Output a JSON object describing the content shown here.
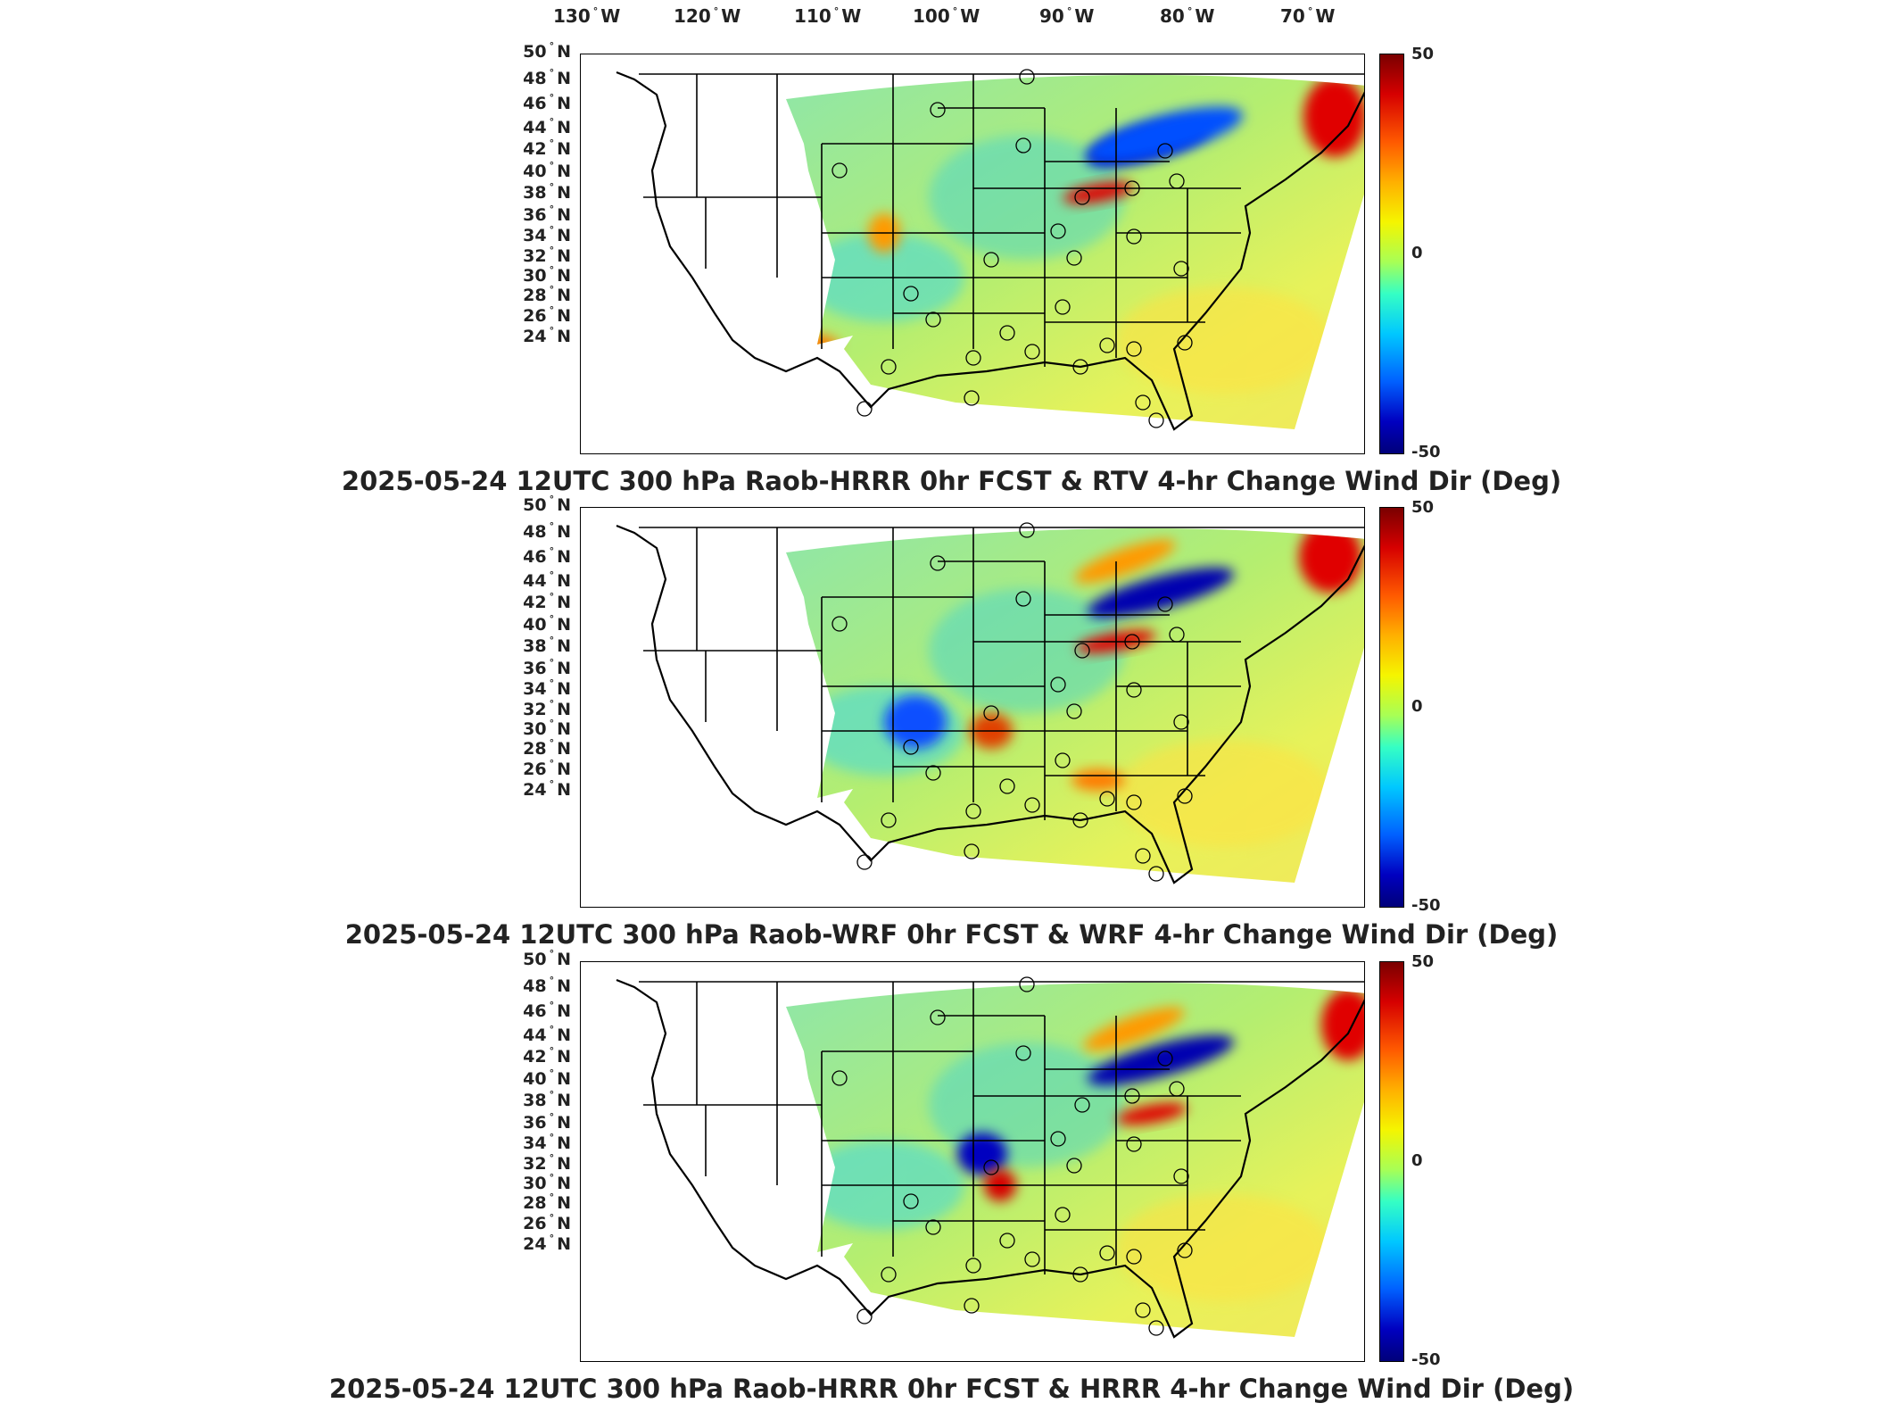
{
  "lon_labels": [
    {
      "deg": "130",
      "hem": "W"
    },
    {
      "deg": "120",
      "hem": "W"
    },
    {
      "deg": "110",
      "hem": "W"
    },
    {
      "deg": "100",
      "hem": "W"
    },
    {
      "deg": "90",
      "hem": "W"
    },
    {
      "deg": "80",
      "hem": "W"
    },
    {
      "deg": "70",
      "hem": "W"
    }
  ],
  "lat_labels": [
    {
      "deg": "50",
      "hem": "N"
    },
    {
      "deg": "48",
      "hem": "N"
    },
    {
      "deg": "46",
      "hem": "N"
    },
    {
      "deg": "44",
      "hem": "N"
    },
    {
      "deg": "42",
      "hem": "N"
    },
    {
      "deg": "40",
      "hem": "N"
    },
    {
      "deg": "38",
      "hem": "N"
    },
    {
      "deg": "36",
      "hem": "N"
    },
    {
      "deg": "34",
      "hem": "N"
    },
    {
      "deg": "32",
      "hem": "N"
    },
    {
      "deg": "30",
      "hem": "N"
    },
    {
      "deg": "28",
      "hem": "N"
    },
    {
      "deg": "26",
      "hem": "N"
    },
    {
      "deg": "24",
      "hem": "N"
    }
  ],
  "colorbar": {
    "max_label": "50",
    "mid_label": "0",
    "min_label": "-50",
    "colors": [
      "#7a0000",
      "#ff5a00",
      "#f5f500",
      "#35ffc4",
      "#0060ff",
      "#00007a"
    ]
  },
  "panels": [
    {
      "title": "2025-05-24 12UTC 300 hPa Raob-HRRR 0hr FCST & RTV 4-hr Change Wind Dir (Deg)"
    },
    {
      "title": "2025-05-24 12UTC 300 hPa Raob-WRF 0hr FCST & WRF 4-hr Change Wind Dir (Deg)"
    },
    {
      "title": "2025-05-24 12UTC 300 hPa Raob-HRRR 0hr FCST & HRRR 4-hr Change Wind Dir (Deg)"
    }
  ]
}
